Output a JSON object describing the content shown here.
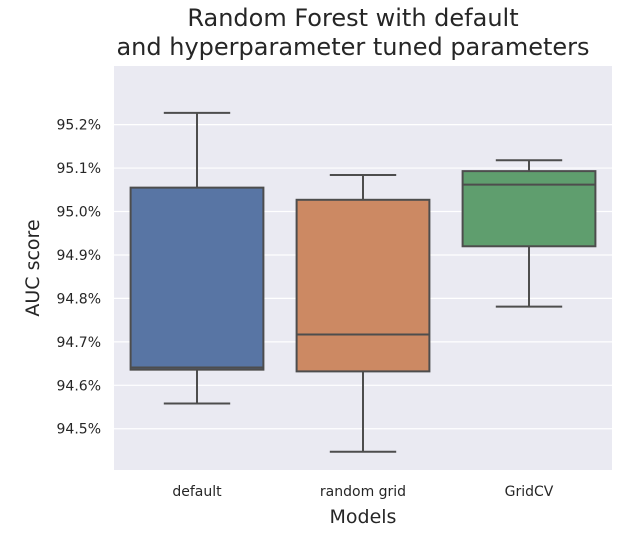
{
  "chart_data": {
    "type": "box",
    "title": [
      "Random Forest with default",
      "and hyperparameter tuned parameters"
    ],
    "xlabel": "Models",
    "ylabel": "AUC score",
    "categories": [
      "default",
      "random grid",
      "GridCV"
    ],
    "ylim": [
      94.405,
      95.335
    ],
    "yticks": [
      94.5,
      94.6,
      94.7,
      94.8,
      94.9,
      95.0,
      95.1,
      95.2
    ],
    "ytick_labels": [
      "94.5%",
      "94.6%",
      "94.7%",
      "94.8%",
      "94.9%",
      "95.0%",
      "95.1%",
      "95.2%"
    ],
    "grid": true,
    "background": "#eaeaf2",
    "series": [
      {
        "category": "default",
        "whisker_low": 94.558,
        "q1": 94.636,
        "median": 94.641,
        "q3": 95.055,
        "whisker_high": 95.227,
        "color": "#5875a4"
      },
      {
        "category": "random grid",
        "whisker_low": 94.447,
        "q1": 94.632,
        "median": 94.717,
        "q3": 95.027,
        "whisker_high": 95.084,
        "color": "#cc8963"
      },
      {
        "category": "GridCV",
        "whisker_low": 94.781,
        "q1": 94.92,
        "median": 95.062,
        "q3": 95.093,
        "whisker_high": 95.118,
        "color": "#5f9e6e"
      }
    ]
  }
}
